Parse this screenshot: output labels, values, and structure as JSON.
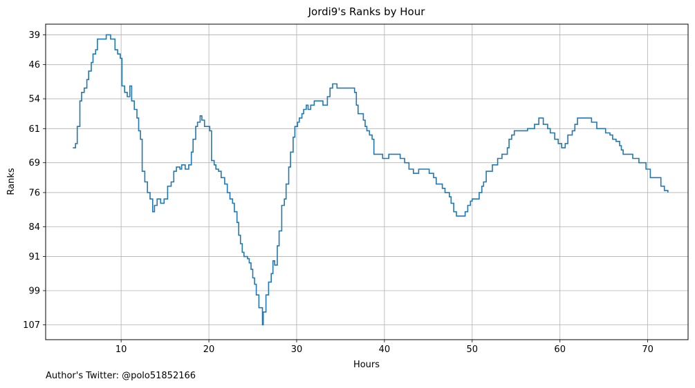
{
  "chart_data": {
    "type": "line",
    "step": true,
    "title": "Jordi9's Ranks by Hour",
    "xlabel": "Hours",
    "ylabel": "Ranks",
    "xlim": [
      1.4,
      74.6
    ],
    "ylim": [
      110.5,
      36.5
    ],
    "y_inverted": true,
    "x_ticks": [
      10,
      20,
      30,
      40,
      50,
      60,
      70
    ],
    "y_ticks": [
      39,
      46,
      54,
      61,
      69,
      76,
      84,
      91,
      99,
      107
    ],
    "grid": true,
    "line_color": "#1f77b4",
    "series": [
      {
        "points": [
          [
            4.5,
            65.5
          ],
          [
            4.8,
            64.5
          ],
          [
            5.0,
            60.5
          ],
          [
            5.3,
            54.5
          ],
          [
            5.5,
            52.5
          ],
          [
            5.8,
            51.5
          ],
          [
            6.1,
            49.5
          ],
          [
            6.3,
            47.5
          ],
          [
            6.6,
            45.5
          ],
          [
            6.8,
            43.5
          ],
          [
            7.1,
            42.5
          ],
          [
            7.3,
            40
          ],
          [
            8.3,
            39
          ],
          [
            8.8,
            40
          ],
          [
            9.3,
            42.5
          ],
          [
            9.6,
            43.5
          ],
          [
            9.9,
            44.5
          ],
          [
            10.1,
            51
          ],
          [
            10.4,
            52.5
          ],
          [
            10.7,
            53.5
          ],
          [
            11.0,
            51
          ],
          [
            11.2,
            54.5
          ],
          [
            11.5,
            56.5
          ],
          [
            11.8,
            58.5
          ],
          [
            12.0,
            61.5
          ],
          [
            12.2,
            63.5
          ],
          [
            12.4,
            71
          ],
          [
            12.7,
            73.5
          ],
          [
            13.0,
            76
          ],
          [
            13.3,
            77.5
          ],
          [
            13.6,
            80.5
          ],
          [
            13.8,
            79
          ],
          [
            14.1,
            77.5
          ],
          [
            14.5,
            78.5
          ],
          [
            14.9,
            77.5
          ],
          [
            15.3,
            74.5
          ],
          [
            15.7,
            73.5
          ],
          [
            16.0,
            71
          ],
          [
            16.3,
            70
          ],
          [
            16.7,
            70.5
          ],
          [
            16.9,
            69.5
          ],
          [
            17.3,
            70.5
          ],
          [
            17.7,
            69.5
          ],
          [
            18.0,
            66.5
          ],
          [
            18.2,
            63.5
          ],
          [
            18.5,
            60.5
          ],
          [
            18.7,
            59.5
          ],
          [
            19.0,
            58
          ],
          [
            19.2,
            59
          ],
          [
            19.5,
            60.5
          ],
          [
            20.1,
            61.5
          ],
          [
            20.3,
            68.5
          ],
          [
            20.6,
            69.5
          ],
          [
            20.8,
            70.5
          ],
          [
            21.1,
            71
          ],
          [
            21.4,
            72.5
          ],
          [
            21.8,
            74
          ],
          [
            22.1,
            76
          ],
          [
            22.4,
            77.5
          ],
          [
            22.7,
            78.5
          ],
          [
            22.9,
            80.5
          ],
          [
            23.2,
            83
          ],
          [
            23.4,
            86
          ],
          [
            23.6,
            88
          ],
          [
            23.8,
            90
          ],
          [
            24.0,
            91
          ],
          [
            24.4,
            91.5
          ],
          [
            24.6,
            92.5
          ],
          [
            24.8,
            94
          ],
          [
            25.0,
            96
          ],
          [
            25.2,
            97.5
          ],
          [
            25.4,
            100
          ],
          [
            25.7,
            103
          ],
          [
            26.1,
            107
          ],
          [
            26.2,
            104
          ],
          [
            26.5,
            100
          ],
          [
            26.8,
            97
          ],
          [
            27.1,
            95
          ],
          [
            27.3,
            92
          ],
          [
            27.5,
            93
          ],
          [
            27.8,
            88.5
          ],
          [
            28.0,
            85
          ],
          [
            28.3,
            79
          ],
          [
            28.6,
            77.5
          ],
          [
            28.8,
            74
          ],
          [
            29.1,
            70
          ],
          [
            29.3,
            66.5
          ],
          [
            29.6,
            63
          ],
          [
            29.8,
            60.5
          ],
          [
            30.1,
            59.5
          ],
          [
            30.3,
            58.5
          ],
          [
            30.6,
            57.5
          ],
          [
            30.8,
            56.5
          ],
          [
            31.1,
            55.5
          ],
          [
            31.3,
            56.5
          ],
          [
            31.6,
            55.5
          ],
          [
            32.0,
            54.5
          ],
          [
            33.0,
            55.5
          ],
          [
            33.5,
            53.5
          ],
          [
            33.8,
            51.5
          ],
          [
            34.1,
            50.5
          ],
          [
            34.6,
            51.5
          ],
          [
            36.6,
            52.5
          ],
          [
            36.8,
            55.5
          ],
          [
            37.0,
            57.5
          ],
          [
            37.6,
            59
          ],
          [
            37.8,
            60.5
          ],
          [
            38.0,
            61.5
          ],
          [
            38.3,
            62.5
          ],
          [
            38.6,
            63.5
          ],
          [
            38.8,
            67
          ],
          [
            39.8,
            68
          ],
          [
            40.5,
            67
          ],
          [
            41.8,
            68
          ],
          [
            42.3,
            69
          ],
          [
            42.8,
            70.5
          ],
          [
            43.3,
            71.5
          ],
          [
            43.9,
            70.5
          ],
          [
            45.1,
            71.5
          ],
          [
            45.6,
            72.5
          ],
          [
            45.9,
            74
          ],
          [
            46.6,
            75
          ],
          [
            46.9,
            76
          ],
          [
            47.4,
            77
          ],
          [
            47.6,
            78.5
          ],
          [
            47.9,
            80.5
          ],
          [
            48.2,
            81.5
          ],
          [
            49.2,
            80.5
          ],
          [
            49.5,
            79
          ],
          [
            49.8,
            78
          ],
          [
            50.0,
            77.5
          ],
          [
            50.8,
            76
          ],
          [
            51.1,
            74.5
          ],
          [
            51.3,
            73.5
          ],
          [
            51.6,
            71
          ],
          [
            52.3,
            69.5
          ],
          [
            52.9,
            68
          ],
          [
            53.4,
            67
          ],
          [
            54.0,
            65.5
          ],
          [
            54.2,
            63.5
          ],
          [
            54.5,
            62.5
          ],
          [
            54.8,
            61.5
          ],
          [
            55.3,
            61.5
          ],
          [
            56.3,
            61
          ],
          [
            57.1,
            60
          ],
          [
            57.6,
            58.5
          ],
          [
            58.1,
            60
          ],
          [
            58.6,
            61
          ],
          [
            58.9,
            62
          ],
          [
            59.4,
            63.5
          ],
          [
            59.8,
            64.5
          ],
          [
            60.2,
            65.5
          ],
          [
            60.6,
            64.5
          ],
          [
            60.9,
            62.5
          ],
          [
            61.4,
            61.5
          ],
          [
            61.7,
            60
          ],
          [
            62.0,
            58.5
          ],
          [
            63.6,
            59.5
          ],
          [
            64.2,
            61
          ],
          [
            65.2,
            62
          ],
          [
            65.7,
            62.5
          ],
          [
            66.0,
            63.5
          ],
          [
            66.4,
            64
          ],
          [
            66.8,
            65
          ],
          [
            67.0,
            66
          ],
          [
            67.2,
            67
          ],
          [
            68.3,
            68
          ],
          [
            69.0,
            69
          ],
          [
            69.8,
            70.5
          ],
          [
            70.3,
            72.5
          ],
          [
            71.5,
            74.5
          ],
          [
            71.9,
            75.5
          ],
          [
            72.3,
            76
          ]
        ]
      }
    ]
  },
  "footer_text": "Author's Twitter: @polo51852166"
}
